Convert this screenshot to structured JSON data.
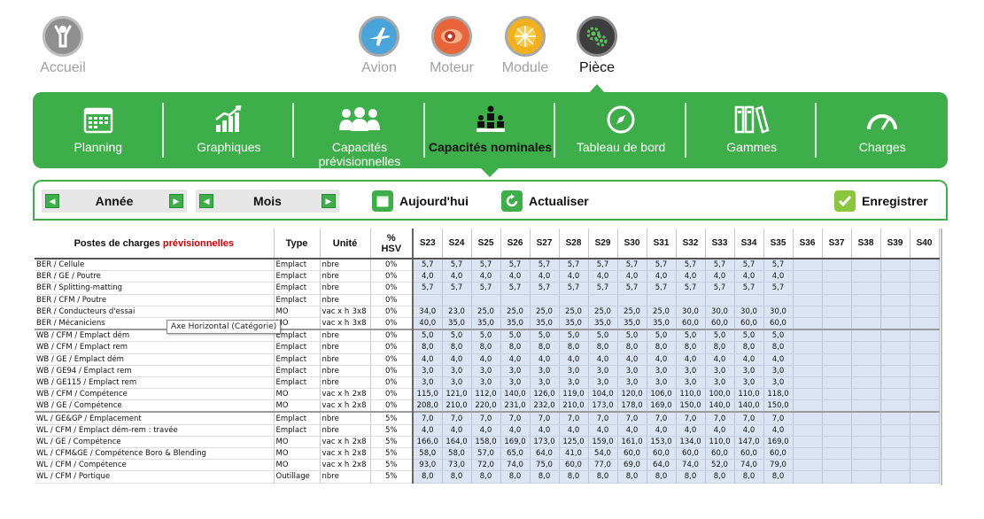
{
  "topnav": {
    "home": {
      "label": "Accueil",
      "icon": "person-icon"
    },
    "items": [
      {
        "label": "Avion",
        "icon": "airplane-icon"
      },
      {
        "label": "Moteur",
        "icon": "engine-icon"
      },
      {
        "label": "Module",
        "icon": "fan-icon"
      },
      {
        "label": "Pièce",
        "icon": "gears-icon",
        "active": true
      }
    ]
  },
  "menu": {
    "items": [
      {
        "label": "Planning",
        "icon": "calendar-icon"
      },
      {
        "label": "Graphiques",
        "icon": "bar-chart-icon"
      },
      {
        "label": "Capacités prévisionnelles",
        "icon": "people-icon"
      },
      {
        "label": "Capacités nominales",
        "icon": "team-icon",
        "active": true
      },
      {
        "label": "Tableau de bord",
        "icon": "compass-icon"
      },
      {
        "label": "Gammes",
        "icon": "binders-icon"
      },
      {
        "label": "Charges",
        "icon": "gauge-icon"
      }
    ],
    "accent": "#3dae49"
  },
  "toolbar": {
    "year_label": "Année",
    "month_label": "Mois",
    "today_label": "Aujourd'hui",
    "refresh_label": "Actualiser",
    "save_label": "Enregistrer"
  },
  "table": {
    "headers": {
      "postes_prefix": "Postes de charges ",
      "postes_highlight": "prévisionnelles",
      "type": "Type",
      "unite": "Unité",
      "hsv_line1": "%",
      "hsv_line2": "HSV",
      "weeks": [
        "S23",
        "S24",
        "S25",
        "S26",
        "S27",
        "S28",
        "S29",
        "S30",
        "S31",
        "S32",
        "S33",
        "S34",
        "S35",
        "S36",
        "S37",
        "S38",
        "S39",
        "S40"
      ]
    },
    "rows": [
      {
        "poste": "BER / Cellule",
        "type": "Emplact",
        "unite": "nbre",
        "factor": "",
        "hsv": "0%",
        "values": [
          "5,7",
          "5,7",
          "5,7",
          "5,7",
          "5,7",
          "5,7",
          "5,7",
          "5,7",
          "5,7",
          "5,7",
          "5,7",
          "5,7",
          "5,7",
          "",
          "",
          "",
          "",
          ""
        ]
      },
      {
        "poste": "BER / GE / Poutre",
        "type": "Emplact",
        "unite": "nbre",
        "factor": "",
        "hsv": "0%",
        "values": [
          "4,0",
          "4,0",
          "4,0",
          "4,0",
          "4,0",
          "4,0",
          "4,0",
          "4,0",
          "4,0",
          "4,0",
          "4,0",
          "4,0",
          "4,0",
          "",
          "",
          "",
          "",
          ""
        ]
      },
      {
        "poste": "BER / Splitting-matting",
        "type": "Emplact",
        "unite": "nbre",
        "factor": "",
        "hsv": "0%",
        "values": [
          "5,7",
          "5,7",
          "5,7",
          "5,7",
          "5,7",
          "5,7",
          "5,7",
          "5,7",
          "5,7",
          "5,7",
          "5,7",
          "5,7",
          "5,7",
          "",
          "",
          "",
          "",
          ""
        ]
      },
      {
        "poste": "BER / CFM / Poutre",
        "type": "Emplact",
        "unite": "nbre",
        "factor": "",
        "hsv": "0%",
        "values": [
          "",
          "",
          "",
          "",
          "",
          "",
          "",
          "",
          "",
          "",
          "",
          "",
          "",
          "",
          "",
          "",
          "",
          ""
        ]
      },
      {
        "poste": "BER / Conducteurs d'essai",
        "type": "MO",
        "unite": "vac x h",
        "factor": "3x8",
        "hsv": "0%",
        "values": [
          "34,0",
          "23,0",
          "25,0",
          "25,0",
          "25,0",
          "25,0",
          "25,0",
          "25,0",
          "25,0",
          "30,0",
          "30,0",
          "30,0",
          "30,0",
          "",
          "",
          "",
          "",
          ""
        ]
      },
      {
        "poste": "BER / Mécaniciens",
        "type": "MO",
        "unite": "vac x h",
        "factor": "3x8",
        "hsv": "0%",
        "values": [
          "40,0",
          "35,0",
          "35,0",
          "35,0",
          "35,0",
          "35,0",
          "35,0",
          "35,0",
          "35,0",
          "60,0",
          "60,0",
          "60,0",
          "60,0",
          "",
          "",
          "",
          "",
          ""
        ]
      },
      {
        "poste": "WB / CFM / Emplact dém",
        "type": "Emplact",
        "unite": "nbre",
        "factor": "",
        "hsv": "0%",
        "values": [
          "5,0",
          "5,0",
          "5,0",
          "5,0",
          "5,0",
          "5,0",
          "5,0",
          "5,0",
          "5,0",
          "5,0",
          "5,0",
          "5,0",
          "5,0",
          "",
          "",
          "",
          "",
          ""
        ],
        "groupstart": true
      },
      {
        "poste": "WB / CFM / Emplact rem",
        "type": "Emplact",
        "unite": "nbre",
        "factor": "",
        "hsv": "0%",
        "values": [
          "8,0",
          "8,0",
          "8,0",
          "8,0",
          "8,0",
          "8,0",
          "8,0",
          "8,0",
          "8,0",
          "8,0",
          "8,0",
          "8,0",
          "8,0",
          "",
          "",
          "",
          "",
          ""
        ]
      },
      {
        "poste": "WB / GE / Emplact dém",
        "type": "Emplact",
        "unite": "nbre",
        "factor": "",
        "hsv": "0%",
        "values": [
          "4,0",
          "4,0",
          "4,0",
          "4,0",
          "4,0",
          "4,0",
          "4,0",
          "4,0",
          "4,0",
          "4,0",
          "4,0",
          "4,0",
          "4,0",
          "",
          "",
          "",
          "",
          ""
        ]
      },
      {
        "poste": "WB / GE94 / Emplact rem",
        "type": "Emplact",
        "unite": "nbre",
        "factor": "",
        "hsv": "0%",
        "values": [
          "3,0",
          "3,0",
          "3,0",
          "3,0",
          "3,0",
          "3,0",
          "3,0",
          "3,0",
          "3,0",
          "3,0",
          "3,0",
          "3,0",
          "3,0",
          "",
          "",
          "",
          "",
          ""
        ]
      },
      {
        "poste": "WB / GE115 / Emplact rem",
        "type": "Emplact",
        "unite": "nbre",
        "factor": "",
        "hsv": "0%",
        "values": [
          "3,0",
          "3,0",
          "3,0",
          "3,0",
          "3,0",
          "3,0",
          "3,0",
          "3,0",
          "3,0",
          "3,0",
          "3,0",
          "3,0",
          "3,0",
          "",
          "",
          "",
          "",
          ""
        ]
      },
      {
        "poste": "WB / CFM / Compétence",
        "type": "MO",
        "unite": "vac x h",
        "factor": "2x8",
        "hsv": "0%",
        "values": [
          "115,0",
          "121,0",
          "112,0",
          "140,0",
          "126,0",
          "119,0",
          "104,0",
          "120,0",
          "106,0",
          "110,0",
          "100,0",
          "110,0",
          "118,0",
          "",
          "",
          "",
          "",
          ""
        ]
      },
      {
        "poste": "WB / GE / Compétence",
        "type": "MO",
        "unite": "vac x h",
        "factor": "2x8",
        "hsv": "0%",
        "values": [
          "208,0",
          "210,0",
          "220,0",
          "231,0",
          "232,0",
          "210,0",
          "173,0",
          "178,0",
          "169,0",
          "150,0",
          "140,0",
          "140,0",
          "150,0",
          "",
          "",
          "",
          "",
          ""
        ]
      },
      {
        "poste": "WL / GE&GP / Emplacement",
        "type": "Emplact",
        "unite": "nbre",
        "factor": "",
        "hsv": "5%",
        "values": [
          "7,0",
          "7,0",
          "7,0",
          "7,0",
          "7,0",
          "7,0",
          "7,0",
          "7,0",
          "7,0",
          "7,0",
          "7,0",
          "7,0",
          "7,0",
          "",
          "",
          "",
          "",
          ""
        ],
        "groupstart": true
      },
      {
        "poste": "WL / CFM / Emplact dém-rem : travée",
        "type": "Emplact",
        "unite": "nbre",
        "factor": "",
        "hsv": "5%",
        "values": [
          "4,0",
          "4,0",
          "4,0",
          "4,0",
          "4,0",
          "4,0",
          "4,0",
          "4,0",
          "4,0",
          "4,0",
          "4,0",
          "4,0",
          "4,0",
          "",
          "",
          "",
          "",
          ""
        ]
      },
      {
        "poste": "WL / GE / Compétence",
        "type": "MO",
        "unite": "vac x h",
        "factor": "2x8",
        "hsv": "5%",
        "values": [
          "166,0",
          "164,0",
          "158,0",
          "169,0",
          "173,0",
          "125,0",
          "159,0",
          "161,0",
          "153,0",
          "134,0",
          "110,0",
          "147,0",
          "169,0",
          "",
          "",
          "",
          "",
          ""
        ]
      },
      {
        "poste": "WL / CFM&GE / Compétence Boro & Blending",
        "type": "MO",
        "unite": "vac x h",
        "factor": "2x8",
        "hsv": "5%",
        "values": [
          "58,0",
          "58,0",
          "57,0",
          "65,0",
          "64,0",
          "41,0",
          "54,0",
          "60,0",
          "60,0",
          "60,0",
          "60,0",
          "60,0",
          "60,0",
          "",
          "",
          "",
          "",
          ""
        ]
      },
      {
        "poste": "WL / CFM / Compétence",
        "type": "MO",
        "unite": "vac x h",
        "factor": "2x8",
        "hsv": "5%",
        "values": [
          "93,0",
          "73,0",
          "72,0",
          "74,0",
          "75,0",
          "60,0",
          "77,0",
          "69,0",
          "64,0",
          "74,0",
          "52,0",
          "74,0",
          "79,0",
          "",
          "",
          "",
          "",
          ""
        ]
      },
      {
        "poste": "WL / CFM / Portique",
        "type": "Outillage",
        "unite": "nbre",
        "factor": "",
        "hsv": "5%",
        "values": [
          "8,0",
          "8,0",
          "8,0",
          "8,0",
          "8,0",
          "8,0",
          "8,0",
          "8,0",
          "8,0",
          "8,0",
          "8,0",
          "8,0",
          "8,0",
          "",
          "",
          "",
          "",
          ""
        ]
      }
    ]
  },
  "tooltip": {
    "text": "Axe Horizontal (Catégorie)"
  }
}
